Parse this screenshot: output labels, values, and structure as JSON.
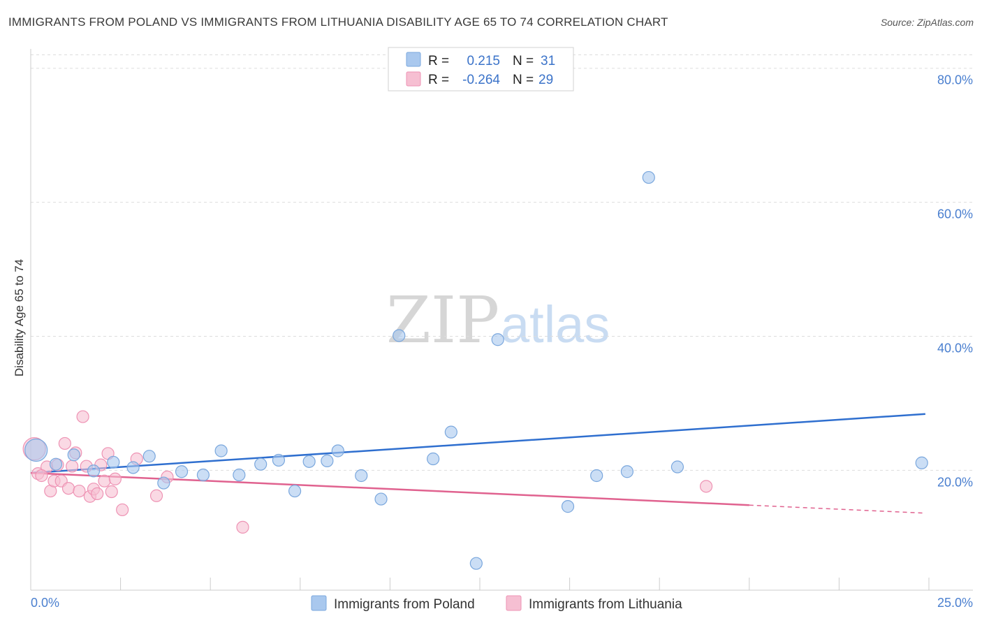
{
  "title": "IMMIGRANTS FROM POLAND VS IMMIGRANTS FROM LITHUANIA DISABILITY AGE 65 TO 74 CORRELATION CHART",
  "source": "Source: ZipAtlas.com",
  "watermark": {
    "zip": "ZIP",
    "atlas": "atlas"
  },
  "colors": {
    "poland_fill": "#a9c8ee",
    "poland_stroke": "#7aa7dd",
    "poland_line": "#2f6fcf",
    "lithuania_fill": "#f6bfd2",
    "lithuania_stroke": "#ee93b4",
    "lithuania_line": "#e0628f",
    "tick_text": "#4a7fcf",
    "grid": "#dddddd"
  },
  "legend_box": {
    "rows": [
      {
        "r_label": "R =",
        "r_value": "0.215",
        "n_label": "N =",
        "n_value": "31"
      },
      {
        "r_label": "R =",
        "r_value": "-0.264",
        "n_label": "N =",
        "n_value": "29"
      }
    ]
  },
  "chart_data": {
    "type": "scatter",
    "title": "IMMIGRANTS FROM POLAND VS IMMIGRANTS FROM LITHUANIA DISABILITY AGE 65 TO 74 CORRELATION CHART",
    "xlabel": "",
    "ylabel": "Disability Age 65 to 74",
    "xlim": [
      0,
      25
    ],
    "ylim": [
      2,
      82
    ],
    "x_tick_labels": [
      "0.0%",
      "25.0%"
    ],
    "y_ticks": [
      20,
      40,
      60,
      80
    ],
    "y_tick_labels": [
      "20.0%",
      "40.0%",
      "60.0%",
      "80.0%"
    ],
    "grid": true,
    "legend_position": "bottom-center",
    "series": [
      {
        "name": "Immigrants from Poland",
        "r": 0.215,
        "n": 31,
        "trend": {
          "x0": 0.0,
          "y0": 19.6,
          "x1": 24.9,
          "y1": 28.4
        },
        "points": [
          {
            "x": 0.15,
            "y": 23.0,
            "big": true
          },
          {
            "x": 0.7,
            "y": 20.9
          },
          {
            "x": 1.2,
            "y": 22.3
          },
          {
            "x": 1.75,
            "y": 19.9
          },
          {
            "x": 2.3,
            "y": 21.2
          },
          {
            "x": 2.85,
            "y": 20.4
          },
          {
            "x": 3.3,
            "y": 22.1
          },
          {
            "x": 3.7,
            "y": 18.1
          },
          {
            "x": 4.2,
            "y": 19.8
          },
          {
            "x": 4.8,
            "y": 19.3
          },
          {
            "x": 5.3,
            "y": 22.9
          },
          {
            "x": 5.8,
            "y": 19.3
          },
          {
            "x": 6.4,
            "y": 20.9
          },
          {
            "x": 6.9,
            "y": 21.5
          },
          {
            "x": 7.35,
            "y": 16.9
          },
          {
            "x": 7.75,
            "y": 21.3
          },
          {
            "x": 8.25,
            "y": 21.4
          },
          {
            "x": 8.55,
            "y": 22.9
          },
          {
            "x": 9.2,
            "y": 19.2
          },
          {
            "x": 9.75,
            "y": 15.7
          },
          {
            "x": 10.25,
            "y": 40.1
          },
          {
            "x": 11.2,
            "y": 21.7
          },
          {
            "x": 11.7,
            "y": 25.7
          },
          {
            "x": 12.4,
            "y": 6.1
          },
          {
            "x": 13.0,
            "y": 39.5
          },
          {
            "x": 14.95,
            "y": 14.6
          },
          {
            "x": 15.75,
            "y": 19.2
          },
          {
            "x": 16.6,
            "y": 19.8
          },
          {
            "x": 17.2,
            "y": 63.7
          },
          {
            "x": 18.0,
            "y": 20.5
          },
          {
            "x": 24.8,
            "y": 21.1
          }
        ]
      },
      {
        "name": "Immigrants from Lithuania",
        "r": -0.264,
        "n": 29,
        "trend": {
          "x0": 0.0,
          "y0": 19.6,
          "x1": 20.0,
          "y1": 14.8
        },
        "trend_dashed_to": {
          "x": 24.9,
          "y": 13.6
        },
        "points": [
          {
            "x": 0.1,
            "y": 23.2,
            "big": true
          },
          {
            "x": 0.2,
            "y": 19.5
          },
          {
            "x": 0.45,
            "y": 20.5
          },
          {
            "x": 0.55,
            "y": 16.9
          },
          {
            "x": 0.65,
            "y": 18.4
          },
          {
            "x": 0.75,
            "y": 20.8
          },
          {
            "x": 0.85,
            "y": 18.4
          },
          {
            "x": 0.95,
            "y": 24.0
          },
          {
            "x": 1.05,
            "y": 17.3
          },
          {
            "x": 1.15,
            "y": 20.6
          },
          {
            "x": 1.25,
            "y": 22.6
          },
          {
            "x": 1.35,
            "y": 16.9
          },
          {
            "x": 1.45,
            "y": 28.0
          },
          {
            "x": 1.55,
            "y": 20.6
          },
          {
            "x": 1.65,
            "y": 16.1
          },
          {
            "x": 1.75,
            "y": 17.2
          },
          {
            "x": 1.85,
            "y": 16.5
          },
          {
            "x": 1.95,
            "y": 20.8
          },
          {
            "x": 2.05,
            "y": 18.4
          },
          {
            "x": 2.15,
            "y": 22.5
          },
          {
            "x": 2.25,
            "y": 16.8
          },
          {
            "x": 2.35,
            "y": 18.7
          },
          {
            "x": 2.55,
            "y": 14.1
          },
          {
            "x": 2.95,
            "y": 21.7
          },
          {
            "x": 3.5,
            "y": 16.2
          },
          {
            "x": 3.8,
            "y": 19.0
          },
          {
            "x": 5.9,
            "y": 11.5
          },
          {
            "x": 18.8,
            "y": 17.6
          },
          {
            "x": 0.3,
            "y": 19.2
          }
        ]
      }
    ]
  },
  "bottom_legend": [
    "Immigrants from Poland",
    "Immigrants from Lithuania"
  ]
}
